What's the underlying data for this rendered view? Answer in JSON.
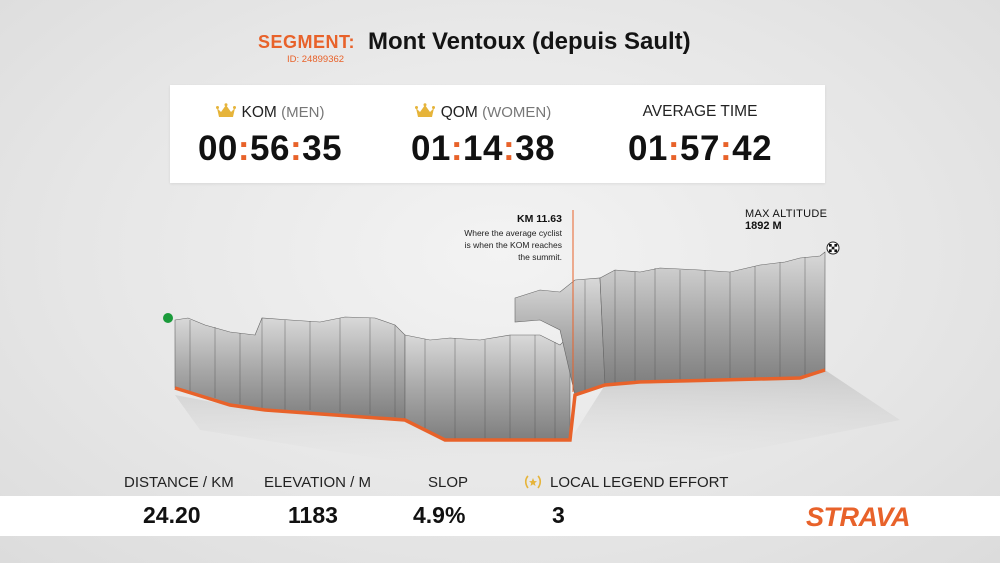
{
  "segment": {
    "label": "SEGMENT:",
    "id": "ID: 24899362",
    "name": "Mont Ventoux (depuis Sault)"
  },
  "stats": {
    "kom": {
      "label": "KOM",
      "sub": "(MEN)",
      "h": "00",
      "m": "56",
      "s": "35"
    },
    "qom": {
      "label": "QOM",
      "sub": "(WOMEN)",
      "h": "01",
      "m": "14",
      "s": "38"
    },
    "avg": {
      "label": "AVERAGE TIME",
      "h": "01",
      "m": "57",
      "s": "42"
    }
  },
  "annotations": {
    "km_title": "KM 11.63",
    "km_desc_1": "Where the average cyclist",
    "km_desc_2": "is when the KOM reaches",
    "km_desc_3": "the summit.",
    "max_alt_label": "MAX ALTITUDE",
    "max_alt_value": "1892 M"
  },
  "footer": {
    "distance_label": "DISTANCE / KM",
    "distance_value": "24.20",
    "elevation_label": "ELEVATION / M",
    "elevation_value": "1183",
    "slope_label": "SLOP",
    "slope_value": "4.9%",
    "legend_label": "LOCAL LEGEND EFFORT",
    "legend_value": "3"
  },
  "brand": {
    "logo_text": "STRAVA"
  },
  "colors": {
    "accent": "#e8622a",
    "gold": "#e6b43a",
    "start_marker": "#1a9a3a",
    "wall": "#8d8d8d"
  }
}
